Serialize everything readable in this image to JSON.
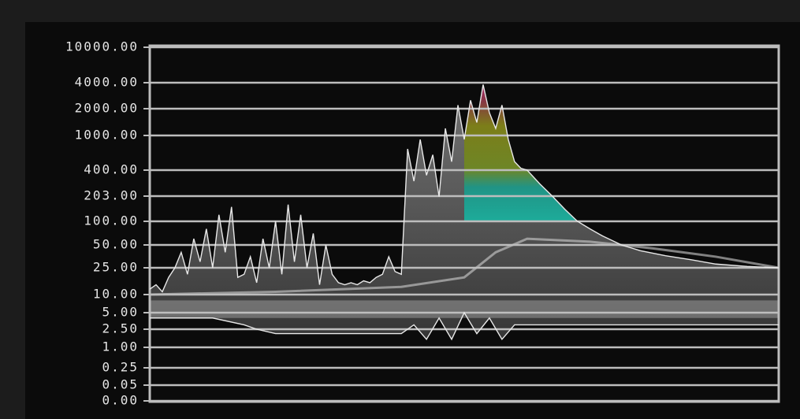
{
  "chart_data": {
    "type": "area",
    "title": "",
    "xlabel": "",
    "ylabel": "",
    "y_scale": "nonlinear (tick-spaced)",
    "y_ticks": [
      "10000.00",
      "4000.00",
      "2000.00",
      "1000.00",
      "400.00",
      "203.00",
      "100.00",
      "50.00",
      "25.00",
      "10.00",
      "5.00",
      "2.50",
      "1.00",
      "0.25",
      "0.05",
      "0.00"
    ],
    "y_tick_values": [
      10000,
      4000,
      2000,
      1000,
      400,
      203,
      100,
      50,
      25,
      10,
      5,
      2.5,
      1,
      0.25,
      0.05,
      0
    ],
    "ylim": [
      0,
      10000
    ],
    "grid": true,
    "legend": "none",
    "series": [
      {
        "role": "upper-envelope",
        "x": [
          0,
          1,
          2,
          3,
          4,
          5,
          6,
          7,
          8,
          9,
          10,
          11,
          12,
          13,
          14,
          15,
          16,
          17,
          18,
          19,
          20,
          21,
          22,
          23,
          24,
          25,
          26,
          27,
          28,
          29,
          30,
          31,
          32,
          33,
          34,
          35,
          36,
          37,
          38,
          39,
          40,
          41,
          42,
          43,
          44,
          45,
          46,
          47,
          48,
          49,
          50,
          51,
          52,
          53,
          54,
          55,
          56,
          57,
          58,
          59,
          60,
          62,
          64,
          66,
          68,
          70,
          72,
          75,
          78,
          82,
          86,
          90,
          95,
          100
        ],
        "y": [
          12,
          14,
          11,
          18,
          25,
          40,
          20,
          60,
          30,
          80,
          25,
          120,
          40,
          150,
          18,
          20,
          35,
          15,
          60,
          25,
          100,
          20,
          160,
          30,
          120,
          25,
          70,
          14,
          50,
          20,
          15,
          14,
          15,
          14,
          16,
          15,
          18,
          20,
          35,
          22,
          20,
          700,
          300,
          900,
          350,
          600,
          200,
          1200,
          500,
          2200,
          900,
          2500,
          1400,
          3800,
          1800,
          1200,
          2200,
          900,
          500,
          420,
          400,
          280,
          203,
          140,
          100,
          80,
          65,
          50,
          42,
          36,
          32,
          28,
          26,
          25
        ]
      },
      {
        "role": "lower-envelope",
        "x": [
          0,
          5,
          10,
          15,
          17,
          20,
          25,
          30,
          35,
          40,
          42,
          44,
          46,
          48,
          50,
          52,
          54,
          56,
          58,
          60,
          65,
          70,
          80,
          90,
          100
        ],
        "y": [
          4,
          4,
          4,
          3,
          2.5,
          2,
          2,
          2,
          2,
          2,
          3,
          1.5,
          4,
          1.5,
          5,
          2,
          4,
          1.5,
          3,
          3,
          3,
          3,
          3,
          3,
          3
        ]
      },
      {
        "role": "density-core",
        "x": [
          0,
          20,
          40,
          50,
          55,
          60,
          70,
          80,
          90,
          100
        ],
        "y": [
          10,
          11,
          13,
          18,
          40,
          60,
          55,
          45,
          35,
          25
        ]
      }
    ],
    "colors": {
      "grid": "#bdbdbd",
      "trace": "#e8e8e8",
      "peak": "#b0206a",
      "mid": "#8a8a10",
      "low": "#18b3a0",
      "density": "#9a9a9a"
    }
  }
}
